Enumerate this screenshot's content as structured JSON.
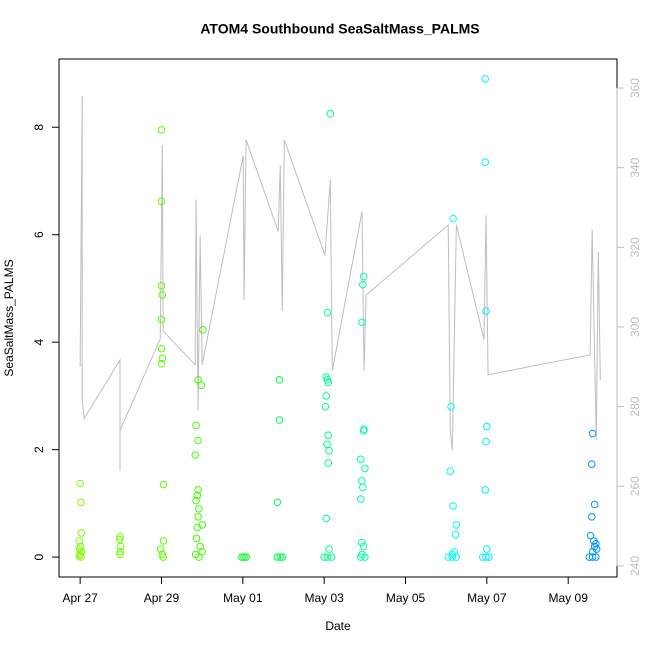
{
  "chart_data": {
    "type": "scatter",
    "title": "ATOM4 Southbound SeaSaltMass_PALMS",
    "xlabel": "Date",
    "ylabel": "SeaSaltMass_PALMS",
    "xlim": [
      -0.52,
      13.2
    ],
    "xticks": [
      {
        "value": 0,
        "label": "Apr 27"
      },
      {
        "value": 2,
        "label": "Apr 29"
      },
      {
        "value": 4,
        "label": "May 01"
      },
      {
        "value": 6,
        "label": "May 03"
      },
      {
        "value": 8,
        "label": "May 05"
      },
      {
        "value": 10,
        "label": "May 07"
      },
      {
        "value": 12,
        "label": "May 09"
      }
    ],
    "ylim": [
      -0.37,
      9.27
    ],
    "yticks": [
      0,
      2,
      4,
      6,
      8
    ],
    "y2lim": [
      237.2,
      367.3
    ],
    "y2ticks": [
      240,
      260,
      280,
      300,
      320,
      340,
      360
    ],
    "y2color": "#bebebe",
    "series": [
      {
        "color": "#80ff00",
        "x": [
          0,
          0.02,
          0.03,
          -0.02,
          0.01,
          -0.01,
          0.03,
          0,
          -0.02,
          0.02
        ],
        "values": [
          1.37,
          1.02,
          0.45,
          0.3,
          0.2,
          0.15,
          0.1,
          0.05,
          0.02,
          0
        ]
      },
      {
        "color": "#73ff00",
        "x": [
          0.98,
          0.97,
          1.0,
          0.99,
          0.98
        ],
        "values": [
          0.38,
          0.33,
          0.2,
          0.1,
          0.05
        ]
      },
      {
        "color": "#59ff00",
        "x": [
          2.0,
          2.0,
          2.0,
          2.02,
          2.0,
          2.0,
          2.02,
          2.0,
          2.05,
          2.05,
          1.98,
          2.02,
          2.04
        ],
        "values": [
          7.95,
          6.62,
          5.05,
          4.88,
          4.42,
          3.88,
          3.7,
          3.6,
          1.35,
          0.3,
          0.15,
          0.05,
          0
        ]
      },
      {
        "color": "#40ff00",
        "x": [
          3.02,
          2.9,
          2.98,
          2.85,
          2.9,
          2.83,
          2.9,
          2.88,
          2.85,
          2.92,
          2.9,
          3.0,
          2.88,
          2.86,
          2.95,
          3.0,
          2.84,
          2.92
        ],
        "values": [
          4.23,
          3.3,
          3.2,
          2.45,
          2.17,
          1.9,
          1.25,
          1.15,
          1.05,
          0.9,
          0.75,
          0.6,
          0.55,
          0.35,
          0.2,
          0.1,
          0.05,
          0
        ]
      },
      {
        "color": "#00ff1a",
        "x": [
          3.98,
          4.03,
          4.08
        ],
        "values": [
          0,
          0,
          0
        ]
      },
      {
        "color": "#00ff4d",
        "x": [
          4.9,
          4.9,
          4.85,
          4.85,
          4.92,
          4.98
        ],
        "values": [
          3.3,
          2.55,
          1.02,
          0,
          0,
          0
        ]
      },
      {
        "color": "#00ff8c",
        "x": [
          6.15,
          6.08,
          6.05,
          6.08,
          6.1,
          6.05,
          6.03,
          6.1,
          6.07,
          6.12,
          6.1,
          6.05,
          6.12,
          6.0,
          6.08,
          6.18
        ],
        "values": [
          8.25,
          4.55,
          3.35,
          3.3,
          3.25,
          3.0,
          2.8,
          2.27,
          2.1,
          1.98,
          1.75,
          0.72,
          0.15,
          0,
          0,
          0
        ]
      },
      {
        "color": "#00ffa6",
        "x": [
          6.97,
          6.95,
          6.93,
          6.98,
          6.97,
          6.9,
          7.0,
          6.92,
          6.95,
          6.9,
          6.92,
          6.97,
          6.93,
          6.9,
          7.0
        ],
        "values": [
          5.22,
          5.07,
          4.37,
          2.38,
          2.35,
          1.82,
          1.65,
          1.42,
          1.3,
          1.08,
          0.27,
          0.2,
          0.05,
          0,
          0
        ]
      },
      {
        "color": "#00ffeb",
        "x": [
          9.17,
          9.12,
          9.1,
          9.17,
          9.25,
          9.23,
          9.2,
          9.15,
          9.05,
          9.15,
          9.25
        ],
        "values": [
          6.3,
          2.8,
          1.6,
          0.95,
          0.6,
          0.42,
          0.1,
          0.05,
          0,
          0,
          0
        ]
      },
      {
        "color": "#00f0ff",
        "x": [
          9.96,
          9.96,
          9.98,
          10.0,
          9.98,
          9.96,
          10.0,
          9.9,
          9.98,
          10.05
        ],
        "values": [
          8.9,
          7.35,
          4.58,
          2.43,
          2.15,
          1.25,
          0.15,
          0,
          0,
          0
        ]
      },
      {
        "color": "#0094ff",
        "x": [
          12.6,
          12.58,
          12.65,
          12.58,
          12.55,
          12.63,
          12.68,
          12.65,
          12.7,
          12.6,
          12.52,
          12.6,
          12.68
        ],
        "values": [
          2.3,
          1.73,
          0.98,
          0.75,
          0.4,
          0.3,
          0.25,
          0.2,
          0.15,
          0.1,
          0,
          0,
          0
        ]
      },
      {
        "type": "line",
        "axis": "y2",
        "color": "#bebebe",
        "x": [
          0,
          0.05,
          0.05,
          0.1,
          0.98,
          0.98,
          0.98,
          1.97,
          2.02,
          2.04,
          2.83,
          2.85,
          2.9,
          2.95,
          3.0,
          4.01,
          4.03,
          4.08,
          4.87,
          4.92,
          4.97,
          5.02,
          6.02,
          6.15,
          6.2,
          6.93,
          6.98,
          7.03,
          9.05,
          9.1,
          9.15,
          9.25,
          9.93,
          9.98,
          10.03,
          12.54,
          12.59,
          12.69,
          12.74,
          12.79
        ],
        "values": [
          290,
          358,
          281.7,
          277,
          291.7,
          264,
          274,
          297,
          345.7,
          299,
          290.5,
          332,
          279,
          323,
          290.5,
          343,
          306.8,
          347,
          324,
          340.7,
          304,
          347,
          318,
          337,
          289,
          329,
          289,
          308,
          325.6,
          274,
          269,
          325.6,
          296.8,
          328,
          288,
          293,
          324.4,
          271.6,
          319,
          286.7
        ]
      }
    ]
  }
}
